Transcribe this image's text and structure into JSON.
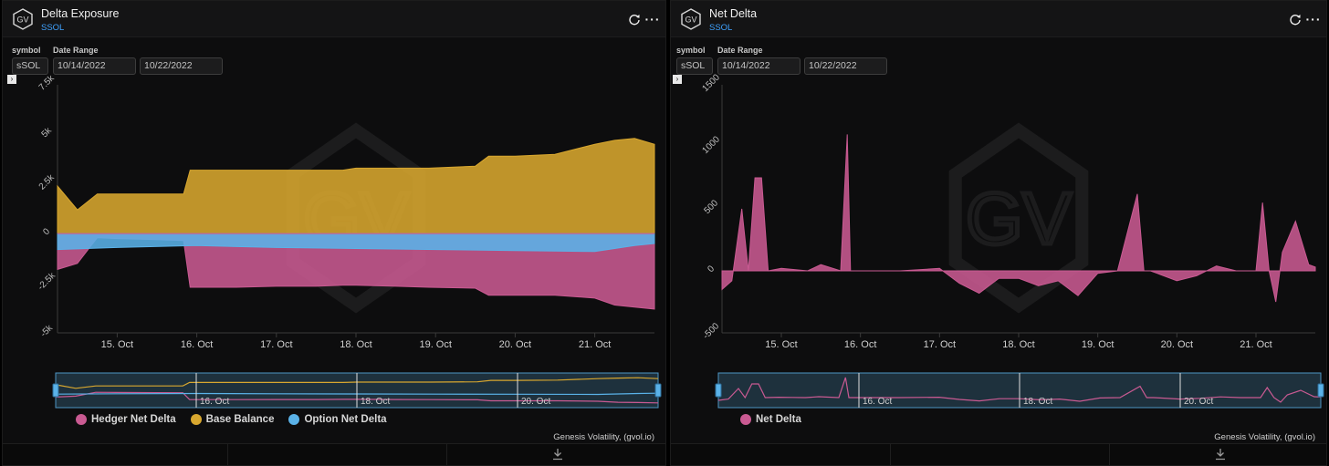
{
  "panels": [
    {
      "title": "Delta Exposure",
      "subtitle": "SSOL",
      "symbol_label": "symbol",
      "symbol_value": "sSOL",
      "date_range_label": "Date Range",
      "date_from": "10/14/2022",
      "date_to": "10/22/2022",
      "credit": "Genesis Volatility, (gvol.io)",
      "navigator_labels": [
        "16. Oct",
        "18. Oct",
        "20. Oct"
      ],
      "watermark": "GV"
    },
    {
      "title": "Net Delta",
      "subtitle": "SSOL",
      "symbol_label": "symbol",
      "symbol_value": "sSOL",
      "date_range_label": "Date Range",
      "date_from": "10/14/2022",
      "date_to": "10/22/2022",
      "credit": "Genesis Volatility, (gvol.io)",
      "navigator_labels": [
        "16. Oct",
        "18. Oct",
        "20. Oct"
      ],
      "watermark": "GV"
    }
  ],
  "icons": {
    "refresh": "refresh-icon",
    "more": "more-icon",
    "download": "download-icon",
    "logo": "gv-logo-icon",
    "collapse": "chevron-right-icon"
  },
  "colors": {
    "hedger": "#c95a92",
    "base": "#d8a72f",
    "option": "#5ab2e8",
    "net": "#c95a92",
    "subtitle": "#3fa2ff"
  },
  "chart_data": [
    {
      "type": "area",
      "x_unit": "date",
      "categories": [
        "15. Oct",
        "16. Oct",
        "17. Oct",
        "18. Oct",
        "19. Oct",
        "20. Oct",
        "21. Oct"
      ],
      "xlim": [
        "2022-10-14T06:00",
        "2022-10-21T18:00"
      ],
      "ylim": [
        -5000,
        7500
      ],
      "yticks": [
        -5000,
        -2500,
        0,
        2500,
        5000,
        7500
      ],
      "ytick_labels": [
        "-5k",
        "-2.5k",
        "0",
        "2.5k",
        "5k",
        "7.5k"
      ],
      "legend_position": "bottom-left",
      "series": [
        {
          "name": "Hedger Net Delta",
          "color": "#c95a92",
          "x": [
            "2022-10-14T06:00",
            "2022-10-14T12:00",
            "2022-10-14T18:00",
            "2022-10-15T00:00",
            "2022-10-15T12:00",
            "2022-10-15T20:00",
            "2022-10-15T22:00",
            "2022-10-16T06:00",
            "2022-10-16T12:00",
            "2022-10-17T00:00",
            "2022-10-17T12:00",
            "2022-10-17T20:00",
            "2022-10-18T00:00",
            "2022-10-18T12:00",
            "2022-10-18T22:00",
            "2022-10-19T12:00",
            "2022-10-19T16:00",
            "2022-10-20T00:00",
            "2022-10-20T12:00",
            "2022-10-21T00:00",
            "2022-10-21T06:00",
            "2022-10-21T12:00",
            "2022-10-21T18:00"
          ],
          "values": [
            -1800,
            -1500,
            -200,
            -250,
            -300,
            -350,
            -2700,
            -2700,
            -2700,
            -2650,
            -2650,
            -2600,
            -2600,
            -2650,
            -2700,
            -2750,
            -3100,
            -3100,
            -3100,
            -3250,
            -3600,
            -3700,
            -3800
          ]
        },
        {
          "name": "Base Balance",
          "color": "#d8a72f",
          "x": [
            "2022-10-14T06:00",
            "2022-10-14T12:00",
            "2022-10-14T18:00",
            "2022-10-15T00:00",
            "2022-10-15T12:00",
            "2022-10-15T20:00",
            "2022-10-15T22:00",
            "2022-10-16T06:00",
            "2022-10-16T12:00",
            "2022-10-17T00:00",
            "2022-10-17T12:00",
            "2022-10-17T20:00",
            "2022-10-18T00:00",
            "2022-10-18T12:00",
            "2022-10-18T22:00",
            "2022-10-19T12:00",
            "2022-10-19T16:00",
            "2022-10-20T00:00",
            "2022-10-20T12:00",
            "2022-10-21T00:00",
            "2022-10-21T06:00",
            "2022-10-21T12:00",
            "2022-10-21T18:00"
          ],
          "values": [
            2400,
            1200,
            2000,
            2000,
            2000,
            2000,
            3200,
            3200,
            3200,
            3200,
            3200,
            3200,
            3300,
            3300,
            3300,
            3400,
            3900,
            3900,
            4000,
            4500,
            4700,
            4800,
            4500
          ]
        },
        {
          "name": "Option Net Delta",
          "color": "#5ab2e8",
          "x": [
            "2022-10-14T06:00",
            "2022-10-15T00:00",
            "2022-10-16T00:00",
            "2022-10-17T00:00",
            "2022-10-18T00:00",
            "2022-10-19T00:00",
            "2022-10-20T00:00",
            "2022-10-21T00:00",
            "2022-10-21T12:00",
            "2022-10-21T18:00"
          ],
          "values": [
            -800,
            -700,
            -600,
            -700,
            -750,
            -800,
            -850,
            -900,
            -600,
            -500
          ]
        }
      ]
    },
    {
      "type": "area",
      "x_unit": "date",
      "categories": [
        "15. Oct",
        "16. Oct",
        "17. Oct",
        "18. Oct",
        "19. Oct",
        "20. Oct",
        "21. Oct"
      ],
      "xlim": [
        "2022-10-14T06:00",
        "2022-10-21T18:00"
      ],
      "ylim": [
        -500,
        1500
      ],
      "yticks": [
        -500,
        0,
        500,
        1000,
        1500
      ],
      "ytick_labels": [
        "-500",
        "0",
        "500",
        "1000",
        "1500"
      ],
      "legend_position": "bottom-left",
      "series": [
        {
          "name": "Net Delta",
          "color": "#c95a92",
          "x": [
            "2022-10-14T06:00",
            "2022-10-14T09:00",
            "2022-10-14T12:00",
            "2022-10-14T14:00",
            "2022-10-14T16:00",
            "2022-10-14T18:00",
            "2022-10-14T20:00",
            "2022-10-15T00:00",
            "2022-10-15T04:00",
            "2022-10-15T08:00",
            "2022-10-15T12:00",
            "2022-10-15T18:00",
            "2022-10-15T20:00",
            "2022-10-15T21:00",
            "2022-10-15T22:00",
            "2022-10-16T06:00",
            "2022-10-16T12:00",
            "2022-10-17T00:00",
            "2022-10-17T06:00",
            "2022-10-17T12:00",
            "2022-10-17T18:00",
            "2022-10-18T00:00",
            "2022-10-18T06:00",
            "2022-10-18T12:00",
            "2022-10-18T18:00",
            "2022-10-19T00:00",
            "2022-10-19T06:00",
            "2022-10-19T12:00",
            "2022-10-19T14:00",
            "2022-10-19T16:00",
            "2022-10-19T18:00",
            "2022-10-20T00:00",
            "2022-10-20T06:00",
            "2022-10-20T12:00",
            "2022-10-20T18:00",
            "2022-10-21T00:00",
            "2022-10-21T02:00",
            "2022-10-21T04:00",
            "2022-10-21T06:00",
            "2022-10-21T08:00",
            "2022-10-21T12:00",
            "2022-10-21T16:00",
            "2022-10-21T18:00"
          ],
          "values": [
            -150,
            -80,
            500,
            0,
            750,
            750,
            0,
            20,
            10,
            0,
            50,
            0,
            1100,
            0,
            0,
            0,
            0,
            20,
            -100,
            -180,
            -60,
            -60,
            -120,
            -80,
            -200,
            -20,
            0,
            620,
            0,
            0,
            -20,
            -80,
            -40,
            40,
            0,
            0,
            550,
            0,
            -250,
            150,
            400,
            50,
            30
          ]
        }
      ]
    }
  ]
}
